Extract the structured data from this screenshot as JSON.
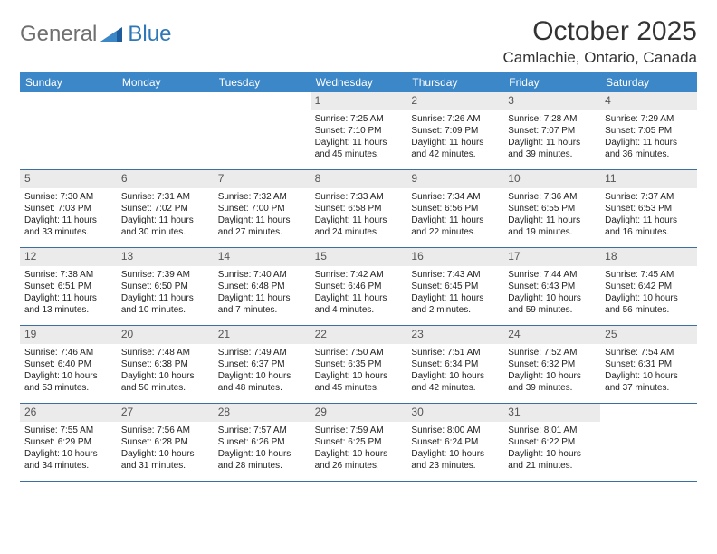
{
  "logo": {
    "text1": "General",
    "text2": "Blue"
  },
  "title": "October 2025",
  "location": "Camlachie, Ontario, Canada",
  "colors": {
    "header_bg": "#3b87c8",
    "header_text": "#ffffff",
    "daynum_bg": "#ebebeb",
    "row_divider": "#3b6fa0",
    "body_text": "#222222",
    "logo_gray": "#6f6f6f",
    "logo_blue": "#2f78b7",
    "page_bg": "#ffffff"
  },
  "weekdays": [
    "Sunday",
    "Monday",
    "Tuesday",
    "Wednesday",
    "Thursday",
    "Friday",
    "Saturday"
  ],
  "weeks": [
    [
      null,
      null,
      null,
      {
        "n": "1",
        "sunrise": "7:25 AM",
        "sunset": "7:10 PM",
        "dl1": "Daylight: 11 hours",
        "dl2": "and 45 minutes."
      },
      {
        "n": "2",
        "sunrise": "7:26 AM",
        "sunset": "7:09 PM",
        "dl1": "Daylight: 11 hours",
        "dl2": "and 42 minutes."
      },
      {
        "n": "3",
        "sunrise": "7:28 AM",
        "sunset": "7:07 PM",
        "dl1": "Daylight: 11 hours",
        "dl2": "and 39 minutes."
      },
      {
        "n": "4",
        "sunrise": "7:29 AM",
        "sunset": "7:05 PM",
        "dl1": "Daylight: 11 hours",
        "dl2": "and 36 minutes."
      }
    ],
    [
      {
        "n": "5",
        "sunrise": "7:30 AM",
        "sunset": "7:03 PM",
        "dl1": "Daylight: 11 hours",
        "dl2": "and 33 minutes."
      },
      {
        "n": "6",
        "sunrise": "7:31 AM",
        "sunset": "7:02 PM",
        "dl1": "Daylight: 11 hours",
        "dl2": "and 30 minutes."
      },
      {
        "n": "7",
        "sunrise": "7:32 AM",
        "sunset": "7:00 PM",
        "dl1": "Daylight: 11 hours",
        "dl2": "and 27 minutes."
      },
      {
        "n": "8",
        "sunrise": "7:33 AM",
        "sunset": "6:58 PM",
        "dl1": "Daylight: 11 hours",
        "dl2": "and 24 minutes."
      },
      {
        "n": "9",
        "sunrise": "7:34 AM",
        "sunset": "6:56 PM",
        "dl1": "Daylight: 11 hours",
        "dl2": "and 22 minutes."
      },
      {
        "n": "10",
        "sunrise": "7:36 AM",
        "sunset": "6:55 PM",
        "dl1": "Daylight: 11 hours",
        "dl2": "and 19 minutes."
      },
      {
        "n": "11",
        "sunrise": "7:37 AM",
        "sunset": "6:53 PM",
        "dl1": "Daylight: 11 hours",
        "dl2": "and 16 minutes."
      }
    ],
    [
      {
        "n": "12",
        "sunrise": "7:38 AM",
        "sunset": "6:51 PM",
        "dl1": "Daylight: 11 hours",
        "dl2": "and 13 minutes."
      },
      {
        "n": "13",
        "sunrise": "7:39 AM",
        "sunset": "6:50 PM",
        "dl1": "Daylight: 11 hours",
        "dl2": "and 10 minutes."
      },
      {
        "n": "14",
        "sunrise": "7:40 AM",
        "sunset": "6:48 PM",
        "dl1": "Daylight: 11 hours",
        "dl2": "and 7 minutes."
      },
      {
        "n": "15",
        "sunrise": "7:42 AM",
        "sunset": "6:46 PM",
        "dl1": "Daylight: 11 hours",
        "dl2": "and 4 minutes."
      },
      {
        "n": "16",
        "sunrise": "7:43 AM",
        "sunset": "6:45 PM",
        "dl1": "Daylight: 11 hours",
        "dl2": "and 2 minutes."
      },
      {
        "n": "17",
        "sunrise": "7:44 AM",
        "sunset": "6:43 PM",
        "dl1": "Daylight: 10 hours",
        "dl2": "and 59 minutes."
      },
      {
        "n": "18",
        "sunrise": "7:45 AM",
        "sunset": "6:42 PM",
        "dl1": "Daylight: 10 hours",
        "dl2": "and 56 minutes."
      }
    ],
    [
      {
        "n": "19",
        "sunrise": "7:46 AM",
        "sunset": "6:40 PM",
        "dl1": "Daylight: 10 hours",
        "dl2": "and 53 minutes."
      },
      {
        "n": "20",
        "sunrise": "7:48 AM",
        "sunset": "6:38 PM",
        "dl1": "Daylight: 10 hours",
        "dl2": "and 50 minutes."
      },
      {
        "n": "21",
        "sunrise": "7:49 AM",
        "sunset": "6:37 PM",
        "dl1": "Daylight: 10 hours",
        "dl2": "and 48 minutes."
      },
      {
        "n": "22",
        "sunrise": "7:50 AM",
        "sunset": "6:35 PM",
        "dl1": "Daylight: 10 hours",
        "dl2": "and 45 minutes."
      },
      {
        "n": "23",
        "sunrise": "7:51 AM",
        "sunset": "6:34 PM",
        "dl1": "Daylight: 10 hours",
        "dl2": "and 42 minutes."
      },
      {
        "n": "24",
        "sunrise": "7:52 AM",
        "sunset": "6:32 PM",
        "dl1": "Daylight: 10 hours",
        "dl2": "and 39 minutes."
      },
      {
        "n": "25",
        "sunrise": "7:54 AM",
        "sunset": "6:31 PM",
        "dl1": "Daylight: 10 hours",
        "dl2": "and 37 minutes."
      }
    ],
    [
      {
        "n": "26",
        "sunrise": "7:55 AM",
        "sunset": "6:29 PM",
        "dl1": "Daylight: 10 hours",
        "dl2": "and 34 minutes."
      },
      {
        "n": "27",
        "sunrise": "7:56 AM",
        "sunset": "6:28 PM",
        "dl1": "Daylight: 10 hours",
        "dl2": "and 31 minutes."
      },
      {
        "n": "28",
        "sunrise": "7:57 AM",
        "sunset": "6:26 PM",
        "dl1": "Daylight: 10 hours",
        "dl2": "and 28 minutes."
      },
      {
        "n": "29",
        "sunrise": "7:59 AM",
        "sunset": "6:25 PM",
        "dl1": "Daylight: 10 hours",
        "dl2": "and 26 minutes."
      },
      {
        "n": "30",
        "sunrise": "8:00 AM",
        "sunset": "6:24 PM",
        "dl1": "Daylight: 10 hours",
        "dl2": "and 23 minutes."
      },
      {
        "n": "31",
        "sunrise": "8:01 AM",
        "sunset": "6:22 PM",
        "dl1": "Daylight: 10 hours",
        "dl2": "and 21 minutes."
      },
      null
    ]
  ]
}
